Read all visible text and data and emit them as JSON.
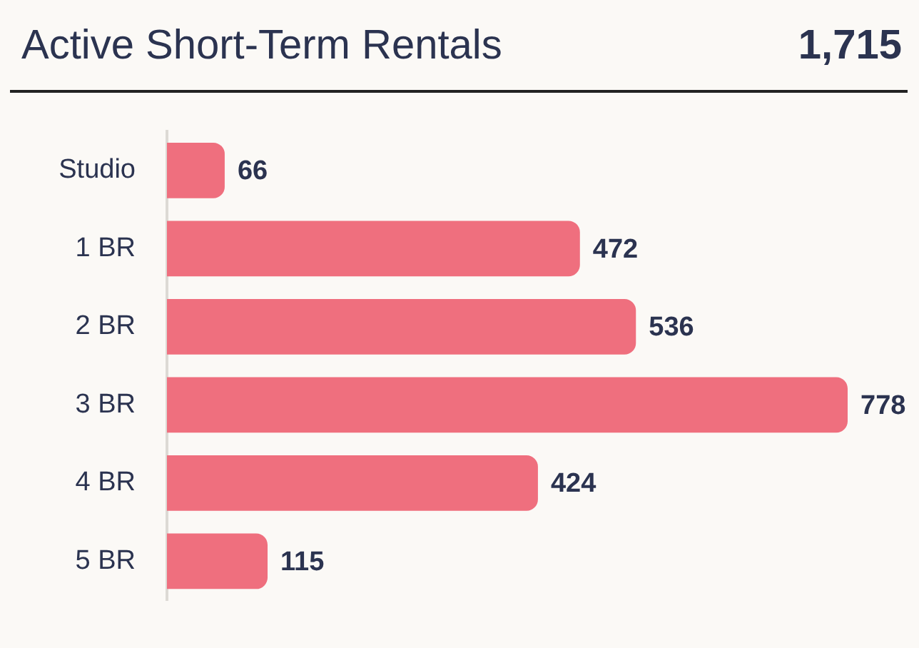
{
  "chart_data": {
    "type": "bar",
    "orientation": "horizontal",
    "title": "Active Short-Term Rentals",
    "annotations": [
      "1,715"
    ],
    "categories": [
      "Studio",
      "1 BR",
      "2 BR",
      "3 BR",
      "4 BR",
      "5 BR"
    ],
    "values": [
      66,
      472,
      536,
      778,
      424,
      115
    ],
    "color": "#ef6f7e",
    "data_labels": true
  }
}
